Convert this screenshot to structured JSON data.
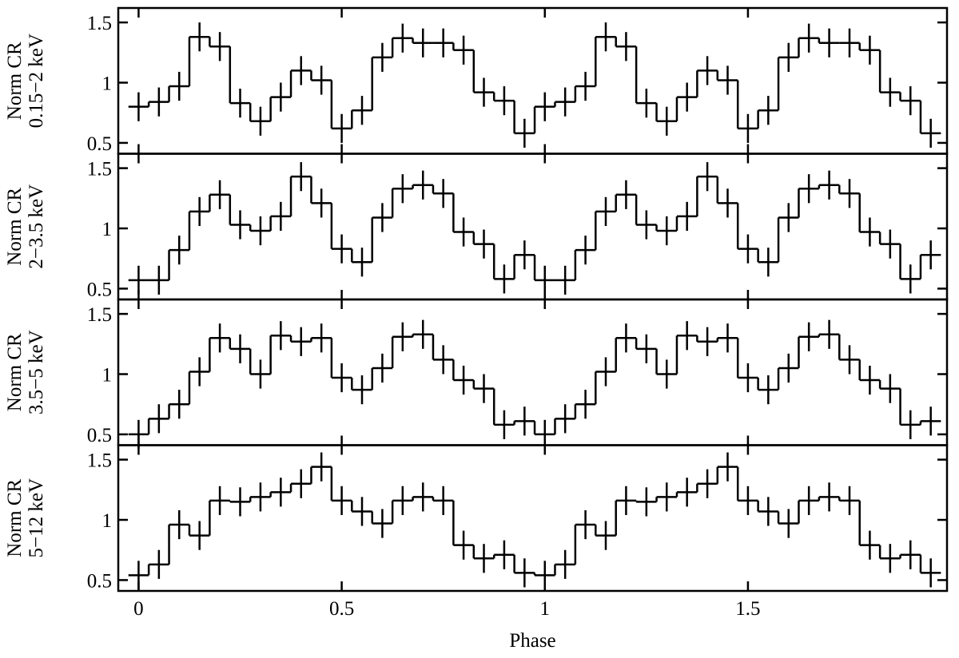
{
  "chart_data": [
    {
      "type": "step",
      "ylabel": [
        "Norm CR",
        "0.15−2 keV"
      ],
      "x": [
        0,
        0.05,
        0.1,
        0.15,
        0.2,
        0.25,
        0.3,
        0.35,
        0.4,
        0.45,
        0.5,
        0.55,
        0.6,
        0.65,
        0.7,
        0.75,
        0.8,
        0.85,
        0.9,
        0.95,
        1,
        1.05,
        1.1,
        1.15,
        1.2,
        1.25,
        1.3,
        1.35,
        1.4,
        1.45,
        1.5,
        1.55,
        1.6,
        1.65,
        1.7,
        1.75,
        1.8,
        1.85,
        1.9,
        1.95
      ],
      "values": [
        0.8,
        0.84,
        0.97,
        1.38,
        1.3,
        0.83,
        0.68,
        0.88,
        1.1,
        1.02,
        0.62,
        0.77,
        1.21,
        1.37,
        1.33,
        1.33,
        1.27,
        0.92,
        0.85,
        0.58,
        0.8,
        0.84,
        0.97,
        1.38,
        1.3,
        0.83,
        0.68,
        0.88,
        1.1,
        1.02,
        0.62,
        0.77,
        1.21,
        1.37,
        1.33,
        1.33,
        1.27,
        0.92,
        0.85,
        0.58
      ],
      "error": 0.12,
      "color": "#000000",
      "xlim": [
        -0.05,
        1.99
      ],
      "xticks": [
        0,
        0.5,
        1,
        1.5
      ],
      "ylim": [
        0.41,
        1.62
      ],
      "yticks": [
        0.5,
        1,
        1.5
      ]
    },
    {
      "type": "step",
      "ylabel": [
        "Norm CR",
        "2−3.5 keV"
      ],
      "x": [
        0,
        0.05,
        0.1,
        0.15,
        0.2,
        0.25,
        0.3,
        0.35,
        0.4,
        0.45,
        0.5,
        0.55,
        0.6,
        0.65,
        0.7,
        0.75,
        0.8,
        0.85,
        0.9,
        0.95,
        1,
        1.05,
        1.1,
        1.15,
        1.2,
        1.25,
        1.3,
        1.35,
        1.4,
        1.45,
        1.5,
        1.55,
        1.6,
        1.65,
        1.7,
        1.75,
        1.8,
        1.85,
        1.9,
        1.95
      ],
      "values": [
        0.57,
        0.57,
        0.82,
        1.14,
        1.28,
        1.03,
        0.98,
        1.1,
        1.43,
        1.21,
        0.83,
        0.72,
        1.09,
        1.33,
        1.36,
        1.29,
        0.97,
        0.87,
        0.58,
        0.78,
        0.57,
        0.57,
        0.82,
        1.14,
        1.28,
        1.03,
        0.98,
        1.1,
        1.43,
        1.21,
        0.83,
        0.72,
        1.09,
        1.33,
        1.36,
        1.29,
        0.97,
        0.87,
        0.58,
        0.78
      ],
      "error": 0.12,
      "color": "#000000",
      "xlim": [
        -0.05,
        1.99
      ],
      "xticks": [
        0,
        0.5,
        1,
        1.5
      ],
      "ylim": [
        0.41,
        1.62
      ],
      "yticks": [
        0.5,
        1,
        1.5
      ]
    },
    {
      "type": "step",
      "ylabel": [
        "Norm CR",
        "3.5−5 keV"
      ],
      "x": [
        0,
        0.05,
        0.1,
        0.15,
        0.2,
        0.25,
        0.3,
        0.35,
        0.4,
        0.45,
        0.5,
        0.55,
        0.6,
        0.65,
        0.7,
        0.75,
        0.8,
        0.85,
        0.9,
        0.95,
        1,
        1.05,
        1.1,
        1.15,
        1.2,
        1.25,
        1.3,
        1.35,
        1.4,
        1.45,
        1.5,
        1.55,
        1.6,
        1.65,
        1.7,
        1.75,
        1.8,
        1.85,
        1.9,
        1.95
      ],
      "values": [
        0.5,
        0.63,
        0.75,
        1.02,
        1.3,
        1.21,
        1.0,
        1.32,
        1.27,
        1.3,
        0.97,
        0.87,
        1.05,
        1.31,
        1.33,
        1.12,
        0.95,
        0.88,
        0.58,
        0.61,
        0.5,
        0.63,
        0.75,
        1.02,
        1.3,
        1.21,
        1.0,
        1.32,
        1.27,
        1.3,
        0.97,
        0.87,
        1.05,
        1.31,
        1.33,
        1.12,
        0.95,
        0.88,
        0.58,
        0.61
      ],
      "error": 0.12,
      "color": "#000000",
      "xlim": [
        -0.05,
        1.99
      ],
      "xticks": [
        0,
        0.5,
        1,
        1.5
      ],
      "ylim": [
        0.41,
        1.62
      ],
      "yticks": [
        0.5,
        1,
        1.5
      ]
    },
    {
      "type": "step",
      "ylabel": [
        "Norm CR",
        "5−12 keV"
      ],
      "xlabel": "Phase",
      "x": [
        0,
        0.05,
        0.1,
        0.15,
        0.2,
        0.25,
        0.3,
        0.35,
        0.4,
        0.45,
        0.5,
        0.55,
        0.6,
        0.65,
        0.7,
        0.75,
        0.8,
        0.85,
        0.9,
        0.95,
        1,
        1.05,
        1.1,
        1.15,
        1.2,
        1.25,
        1.3,
        1.35,
        1.4,
        1.45,
        1.5,
        1.55,
        1.6,
        1.65,
        1.7,
        1.75,
        1.8,
        1.85,
        1.9,
        1.95
      ],
      "values": [
        0.54,
        0.63,
        0.96,
        0.87,
        1.16,
        1.15,
        1.19,
        1.23,
        1.3,
        1.44,
        1.16,
        1.07,
        0.97,
        1.16,
        1.19,
        1.16,
        0.79,
        0.68,
        0.71,
        0.56,
        0.54,
        0.63,
        0.96,
        0.87,
        1.16,
        1.15,
        1.19,
        1.23,
        1.3,
        1.44,
        1.16,
        1.07,
        0.97,
        1.16,
        1.19,
        1.16,
        0.79,
        0.68,
        0.71,
        0.56
      ],
      "error": 0.12,
      "color": "#000000",
      "xlim": [
        -0.05,
        1.99
      ],
      "xticks": [
        0,
        0.5,
        1,
        1.5
      ],
      "ylim": [
        0.41,
        1.62
      ],
      "yticks": [
        0.5,
        1,
        1.5
      ]
    }
  ]
}
